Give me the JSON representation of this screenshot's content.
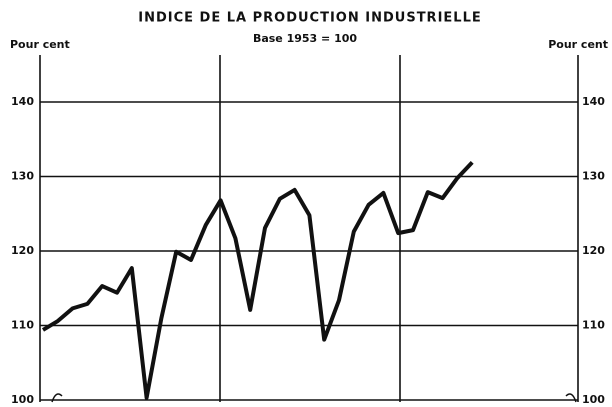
{
  "chart_data": {
    "type": "line",
    "title": "INDICE DE LA PRODUCTION INDUSTRIELLE",
    "subtitle": "Base 1953 = 100",
    "y_label": "Pour cent",
    "y2_label": "Pour cent",
    "categories": [
      null,
      null,
      null,
      null,
      null,
      null,
      null,
      null,
      null,
      null,
      null,
      null,
      null,
      null,
      null,
      null,
      null,
      null,
      null,
      null,
      null,
      null,
      null,
      null,
      null,
      null,
      null,
      null,
      null,
      null
    ],
    "series": [
      {
        "color": "#111111",
        "values": [
          109.4,
          110.6,
          112.3,
          112.9,
          115.3,
          114.4,
          117.7,
          100.3,
          111.0,
          119.9,
          118.8,
          123.5,
          126.8,
          121.7,
          112.1,
          123.1,
          127.0,
          128.2,
          124.8,
          108.1,
          113.4,
          122.6,
          126.2,
          127.8,
          122.4,
          122.8,
          127.9,
          127.1,
          129.8,
          131.9
        ]
      }
    ],
    "ylim": [
      100,
      140
    ],
    "yticks": [
      100,
      110,
      120,
      130,
      140
    ],
    "y2lim": [
      100,
      140
    ],
    "y2ticks": [
      100,
      110,
      120,
      130,
      140
    ],
    "grid": true
  }
}
